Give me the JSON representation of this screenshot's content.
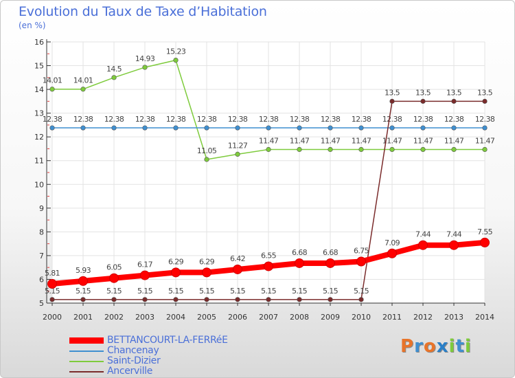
{
  "title": "Evolution du Taux de Taxe d’Habitation",
  "subtitle": "(en %)",
  "chart_data": {
    "type": "line",
    "title": "Evolution du Taux de Taxe d’Habitation",
    "ylabel": "(en %)",
    "xlabel": "",
    "ylim": [
      5,
      16
    ],
    "yticks": [
      "5",
      "6",
      "7",
      "8",
      "9",
      "10",
      "11",
      "12",
      "13",
      "14",
      "15",
      "16"
    ],
    "categories": [
      "2000",
      "2001",
      "2002",
      "2003",
      "2004",
      "2005",
      "2006",
      "2007",
      "2008",
      "2009",
      "2010",
      "2011",
      "2012",
      "2013",
      "2014"
    ],
    "series": [
      {
        "name": "Saint-Dizier",
        "color": "#7ecb3c",
        "values": [
          14.01,
          14.01,
          14.5,
          14.93,
          15.23,
          11.05,
          11.27,
          11.47,
          11.47,
          11.47,
          11.47,
          11.47,
          11.47,
          11.47,
          11.47
        ],
        "labels": [
          "14.01",
          "14.01",
          "14.5",
          "14.93",
          "15.23",
          "11.05",
          "11.27",
          "11.47",
          "11.47",
          "11.47",
          "11.47",
          "11.47",
          "11.47",
          "11.47",
          "11.47"
        ]
      },
      {
        "name": "Chancenay",
        "color": "#3f8fd0",
        "values": [
          12.38,
          12.38,
          12.38,
          12.38,
          12.38,
          12.38,
          12.38,
          12.38,
          12.38,
          12.38,
          12.38,
          12.38,
          12.38,
          12.38,
          12.38
        ],
        "labels": [
          "12.38",
          "12.38",
          "12.38",
          "12.38",
          "12.38",
          "12.38",
          "12.38",
          "12.38",
          "12.38",
          "12.38",
          "12.38",
          "12.38",
          "12.38",
          "12.38",
          "12.38"
        ]
      },
      {
        "name": "Ancerville",
        "color": "#7a2b2b",
        "values": [
          5.15,
          5.15,
          5.15,
          5.15,
          5.15,
          5.15,
          5.15,
          5.15,
          5.15,
          5.15,
          5.15,
          13.5,
          13.5,
          13.5,
          13.5
        ],
        "labels": [
          "5.15",
          "5.15",
          "5.15",
          "5.15",
          "5.15",
          "5.15",
          "5.15",
          "5.15",
          "5.15",
          "5.15",
          "5.15",
          "13.5",
          "13.5",
          "13.5",
          "13.5"
        ]
      },
      {
        "name": "BETTANCOURT-LA-FERRéE",
        "color": "#ff0000",
        "values": [
          5.81,
          5.93,
          6.05,
          6.17,
          6.29,
          6.29,
          6.42,
          6.55,
          6.68,
          6.68,
          6.75,
          7.09,
          7.44,
          7.44,
          7.55
        ],
        "labels": [
          "5.81",
          "5.93",
          "6.05",
          "6.17",
          "6.29",
          "6.29",
          "6.42",
          "6.55",
          "6.68",
          "6.68",
          "6.75",
          "7.09",
          "7.44",
          "7.44",
          "7.55"
        ]
      }
    ],
    "legend": {
      "placement": "bottom-left",
      "entries": [
        "BETTANCOURT-LA-FERRéE",
        "Chancenay",
        "Saint-Dizier",
        "Ancerville"
      ]
    }
  },
  "legend_colors": [
    "#ff0000",
    "#3f8fd0",
    "#7ecb3c",
    "#7a2b2b"
  ],
  "logo": {
    "letters": [
      "P",
      "r",
      "o",
      "x",
      "i",
      "t",
      "i"
    ],
    "colors": [
      "#e8742a",
      "#3f8fd0",
      "#e8742a",
      "#2a7fc7",
      "#7ecb3c",
      "#3f8fd0",
      "#7ecb3c"
    ]
  }
}
